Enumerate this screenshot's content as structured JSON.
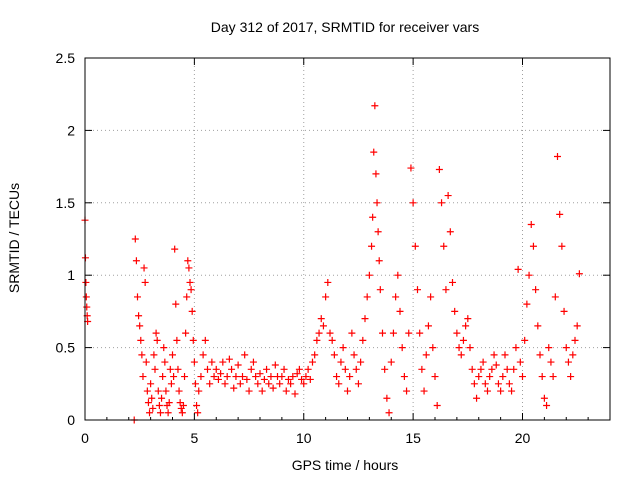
{
  "chart_data": {
    "type": "scatter",
    "title": "Day 312 of 2017, SRMTID for receiver vars",
    "xlabel": "GPS time / hours",
    "ylabel": "SRMTID / TECUs",
    "xlim": [
      0,
      24
    ],
    "ylim": [
      0,
      2.5
    ],
    "xticks": [
      0,
      5,
      10,
      15,
      20
    ],
    "yticks": [
      0,
      0.5,
      1,
      1.5,
      2,
      2.5
    ],
    "x_tick_labels": [
      "0",
      "5",
      "10",
      "15",
      "20"
    ],
    "y_tick_labels": [
      "0",
      "0.5",
      "1",
      "1.5",
      "2",
      "2.5"
    ],
    "grid": true,
    "marker": "+",
    "series": [
      {
        "name": "SRMTID",
        "color": "#ff0000",
        "x": [
          0.0,
          0.02,
          0.04,
          0.06,
          0.08,
          0.1,
          0.12,
          2.25,
          2.3,
          2.35,
          2.4,
          2.45,
          2.5,
          2.55,
          2.6,
          2.65,
          2.7,
          2.75,
          2.8,
          2.85,
          2.9,
          2.95,
          3.0,
          3.05,
          3.1,
          3.15,
          3.2,
          3.25,
          3.3,
          3.35,
          3.4,
          3.45,
          3.5,
          3.55,
          3.6,
          3.65,
          3.7,
          3.75,
          3.8,
          3.85,
          3.9,
          3.95,
          4.0,
          4.05,
          4.1,
          4.15,
          4.2,
          4.25,
          4.3,
          4.35,
          4.4,
          4.45,
          4.5,
          4.55,
          4.6,
          4.65,
          4.7,
          4.75,
          4.8,
          4.85,
          4.9,
          4.95,
          5.0,
          5.05,
          5.1,
          5.15,
          5.2,
          5.3,
          5.4,
          5.5,
          5.6,
          5.7,
          5.8,
          5.9,
          6.0,
          6.1,
          6.2,
          6.3,
          6.4,
          6.5,
          6.6,
          6.7,
          6.8,
          6.9,
          7.0,
          7.1,
          7.2,
          7.3,
          7.4,
          7.5,
          7.6,
          7.7,
          7.8,
          7.9,
          8.0,
          8.1,
          8.2,
          8.3,
          8.4,
          8.5,
          8.6,
          8.7,
          8.8,
          8.9,
          9.0,
          9.1,
          9.2,
          9.3,
          9.4,
          9.5,
          9.6,
          9.7,
          9.8,
          9.9,
          10.0,
          10.1,
          10.2,
          10.3,
          10.4,
          10.5,
          10.6,
          10.7,
          10.8,
          10.9,
          11.0,
          11.1,
          11.2,
          11.3,
          11.4,
          11.5,
          11.6,
          11.7,
          11.8,
          11.9,
          12.0,
          12.1,
          12.2,
          12.3,
          12.4,
          12.5,
          12.6,
          12.7,
          12.8,
          12.9,
          13.0,
          13.1,
          13.15,
          13.2,
          13.25,
          13.3,
          13.35,
          13.4,
          13.45,
          13.5,
          13.6,
          13.7,
          13.8,
          13.9,
          14.0,
          14.1,
          14.2,
          14.3,
          14.4,
          14.5,
          14.6,
          14.7,
          14.8,
          14.9,
          15.0,
          15.1,
          15.2,
          15.3,
          15.4,
          15.5,
          15.6,
          15.7,
          15.8,
          15.9,
          16.0,
          16.1,
          16.2,
          16.3,
          16.4,
          16.5,
          16.6,
          16.7,
          16.8,
          16.9,
          17.0,
          17.1,
          17.2,
          17.3,
          17.4,
          17.5,
          17.6,
          17.7,
          17.8,
          17.9,
          18.0,
          18.1,
          18.2,
          18.3,
          18.4,
          18.5,
          18.6,
          18.7,
          18.8,
          18.9,
          19.0,
          19.1,
          19.2,
          19.3,
          19.4,
          19.5,
          19.6,
          19.7,
          19.8,
          19.9,
          20.0,
          20.1,
          20.2,
          20.3,
          20.4,
          20.5,
          20.6,
          20.7,
          20.8,
          20.9,
          21.0,
          21.1,
          21.2,
          21.3,
          21.4,
          21.5,
          21.6,
          21.7,
          21.8,
          21.9,
          22.0,
          22.1,
          22.2,
          22.3,
          22.4,
          22.5,
          22.6
        ],
        "y": [
          1.38,
          1.12,
          0.95,
          0.85,
          0.78,
          0.72,
          0.68,
          0.0,
          1.25,
          1.1,
          0.85,
          0.72,
          0.65,
          0.55,
          0.45,
          0.3,
          1.05,
          0.95,
          0.4,
          0.2,
          0.12,
          0.05,
          0.25,
          0.15,
          0.08,
          0.45,
          0.35,
          0.6,
          0.55,
          0.2,
          0.1,
          0.05,
          0.15,
          0.3,
          0.5,
          0.4,
          0.2,
          0.1,
          0.05,
          0.12,
          0.35,
          0.25,
          0.45,
          0.3,
          1.18,
          0.8,
          0.55,
          0.35,
          0.2,
          0.12,
          0.08,
          0.05,
          0.1,
          0.3,
          0.6,
          0.85,
          1.1,
          1.05,
          0.95,
          0.9,
          0.75,
          0.55,
          0.4,
          0.25,
          0.1,
          0.05,
          0.2,
          0.3,
          0.45,
          0.55,
          0.35,
          0.25,
          0.4,
          0.3,
          0.35,
          0.28,
          0.32,
          0.4,
          0.25,
          0.3,
          0.42,
          0.35,
          0.22,
          0.3,
          0.38,
          0.25,
          0.3,
          0.45,
          0.28,
          0.2,
          0.35,
          0.4,
          0.3,
          0.25,
          0.32,
          0.2,
          0.28,
          0.35,
          0.25,
          0.3,
          0.22,
          0.38,
          0.3,
          0.25,
          0.3,
          0.35,
          0.2,
          0.28,
          0.25,
          0.3,
          0.18,
          0.32,
          0.35,
          0.28,
          0.25,
          0.3,
          0.35,
          0.28,
          0.4,
          0.45,
          0.55,
          0.6,
          0.7,
          0.65,
          0.85,
          0.95,
          0.6,
          0.55,
          0.45,
          0.3,
          0.25,
          0.4,
          0.5,
          0.35,
          0.2,
          0.3,
          0.6,
          0.45,
          0.35,
          0.25,
          0.4,
          0.55,
          0.7,
          0.85,
          1.0,
          1.2,
          1.4,
          1.85,
          2.17,
          1.7,
          1.5,
          1.3,
          1.1,
          0.9,
          0.6,
          0.35,
          0.15,
          0.05,
          0.4,
          0.6,
          0.85,
          1.0,
          0.75,
          0.5,
          0.3,
          0.2,
          0.6,
          1.74,
          1.5,
          1.2,
          0.9,
          0.6,
          0.35,
          0.2,
          0.45,
          0.65,
          0.85,
          0.5,
          0.3,
          0.1,
          1.73,
          1.5,
          1.2,
          0.9,
          1.55,
          1.3,
          0.95,
          0.75,
          0.6,
          0.5,
          0.45,
          0.55,
          0.65,
          0.7,
          0.5,
          0.35,
          0.25,
          0.15,
          0.3,
          0.35,
          0.4,
          0.25,
          0.2,
          0.3,
          0.35,
          0.45,
          0.38,
          0.25,
          0.2,
          0.3,
          0.45,
          0.35,
          0.25,
          0.2,
          0.35,
          0.5,
          1.04,
          0.4,
          0.3,
          0.55,
          0.8,
          1.0,
          1.35,
          1.2,
          0.9,
          0.65,
          0.45,
          0.3,
          0.15,
          0.1,
          0.5,
          0.4,
          0.3,
          0.85,
          1.82,
          1.42,
          1.2,
          0.75,
          0.5,
          0.4,
          0.3,
          0.45,
          0.55,
          0.65,
          1.01
        ]
      }
    ]
  }
}
